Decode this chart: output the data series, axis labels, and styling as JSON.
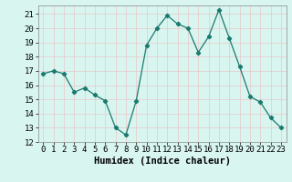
{
  "x": [
    0,
    1,
    2,
    3,
    4,
    5,
    6,
    7,
    8,
    9,
    10,
    11,
    12,
    13,
    14,
    15,
    16,
    17,
    18,
    19,
    20,
    21,
    22,
    23
  ],
  "y": [
    16.8,
    17.0,
    16.8,
    15.5,
    15.8,
    15.3,
    14.9,
    13.0,
    12.5,
    14.9,
    18.8,
    20.0,
    20.9,
    20.3,
    20.0,
    18.3,
    19.4,
    21.3,
    19.3,
    17.3,
    15.2,
    14.8,
    13.7,
    13.0
  ],
  "line_color": "#1a7a6e",
  "marker": "D",
  "marker_size": 2.2,
  "bg_color": "#d8f5f0",
  "grid_color": "#c8e8e0",
  "xlabel": "Humidex (Indice chaleur)",
  "xlabel_fontsize": 7.5,
  "tick_fontsize": 6.5,
  "xlim": [
    -0.5,
    23.5
  ],
  "ylim": [
    12,
    21.6
  ],
  "yticks": [
    12,
    13,
    14,
    15,
    16,
    17,
    18,
    19,
    20,
    21
  ],
  "xticks": [
    0,
    1,
    2,
    3,
    4,
    5,
    6,
    7,
    8,
    9,
    10,
    11,
    12,
    13,
    14,
    15,
    16,
    17,
    18,
    19,
    20,
    21,
    22,
    23
  ]
}
